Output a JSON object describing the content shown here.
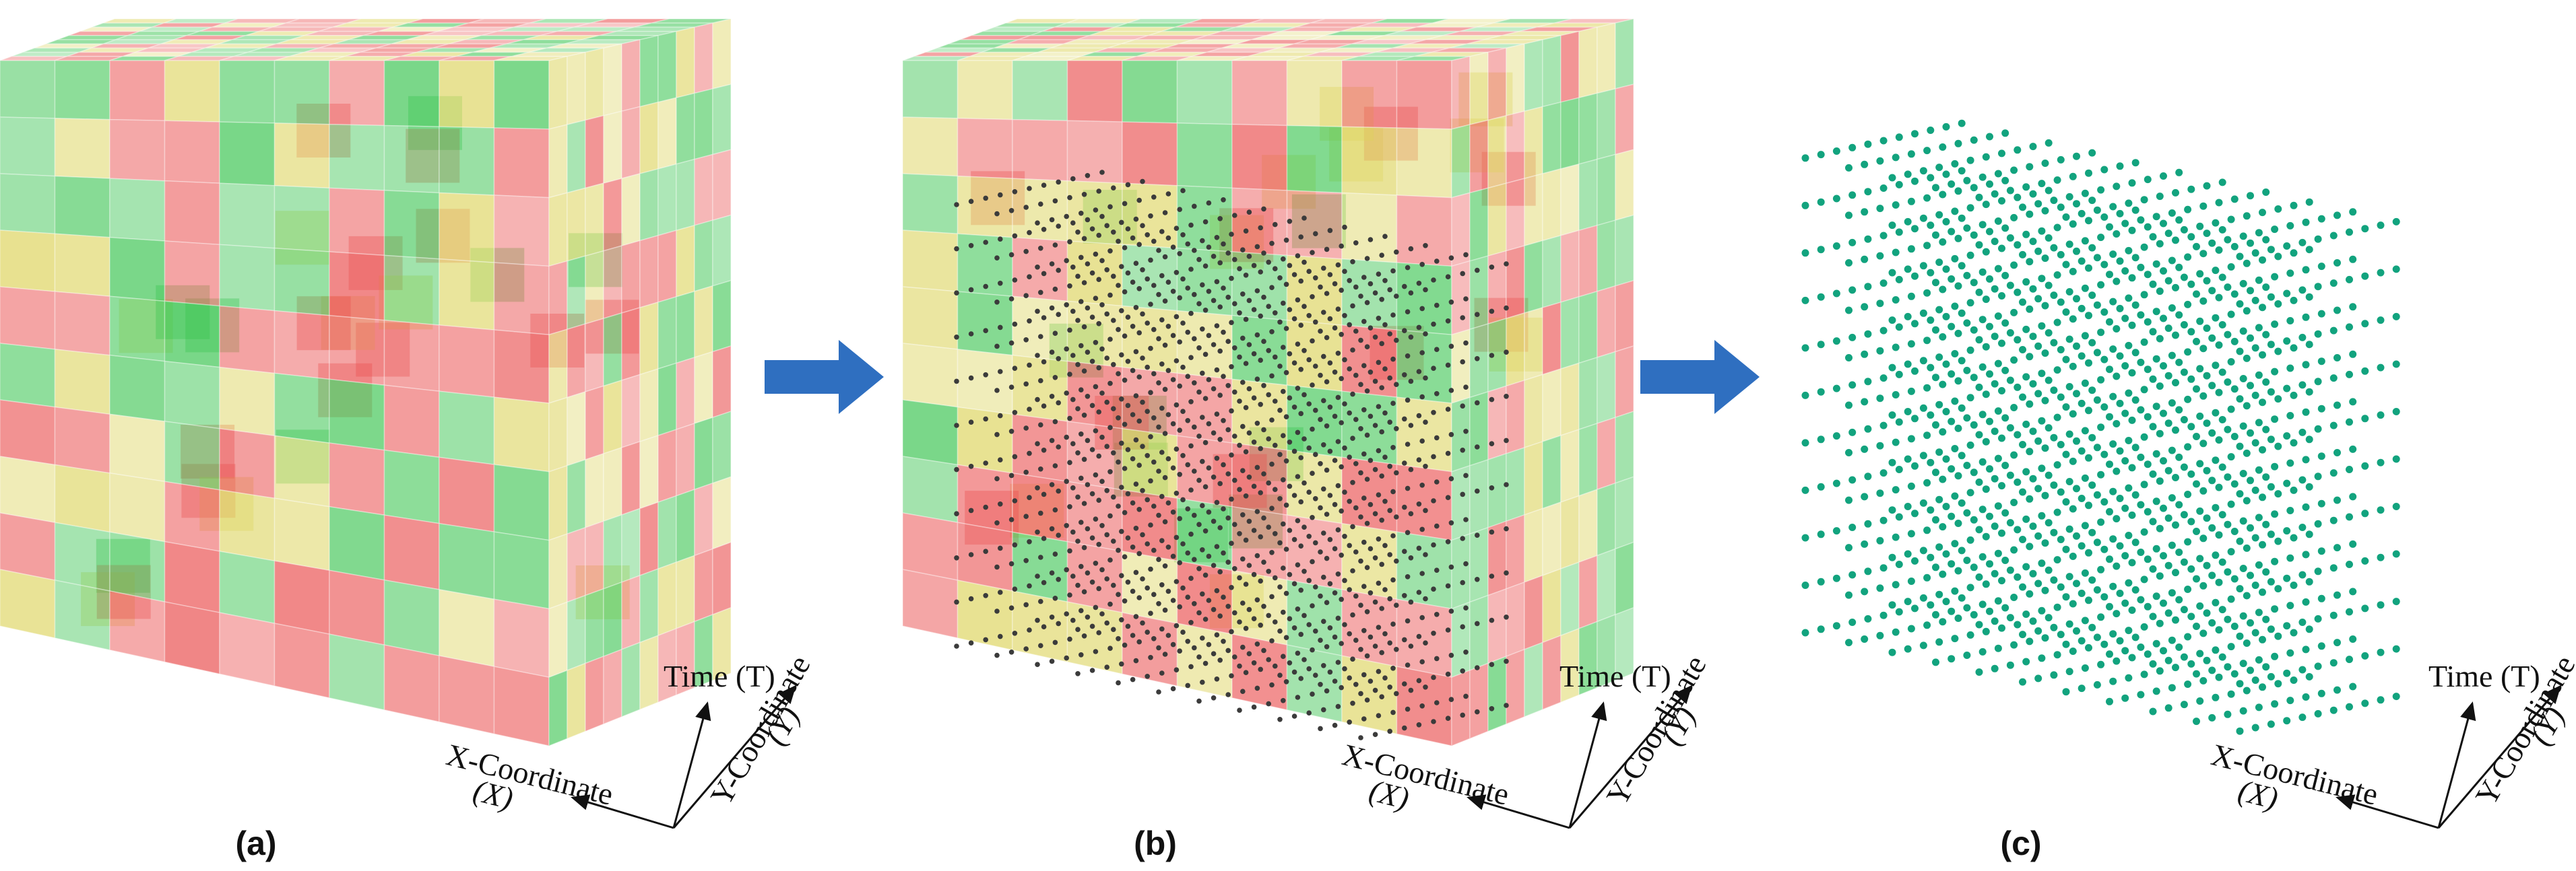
{
  "figure": {
    "panels": [
      {
        "id": "a",
        "label": "(a)",
        "content": "semi-transparent voxel space-time cube"
      },
      {
        "id": "b",
        "label": "(b)",
        "content": "voxel cube with voxel center points"
      },
      {
        "id": "c",
        "label": "(c)",
        "content": "voxel center points only"
      }
    ],
    "arrow_color": "#2f6fc0",
    "voxel_colors": {
      "red": "#e94a4a",
      "green": "#33c24a",
      "yellow": "#dcd35a"
    },
    "point_colors": {
      "dark_points": "#3b3b3b",
      "cyan_points": "#12a37e"
    },
    "axes": {
      "time": "Time (T)",
      "x_name": "X-Coordinate",
      "x_symbol": "(X)",
      "y_name": "Y-Coordinate",
      "y_symbol": "(Y)"
    },
    "grid_voxels_per_side": 10
  }
}
